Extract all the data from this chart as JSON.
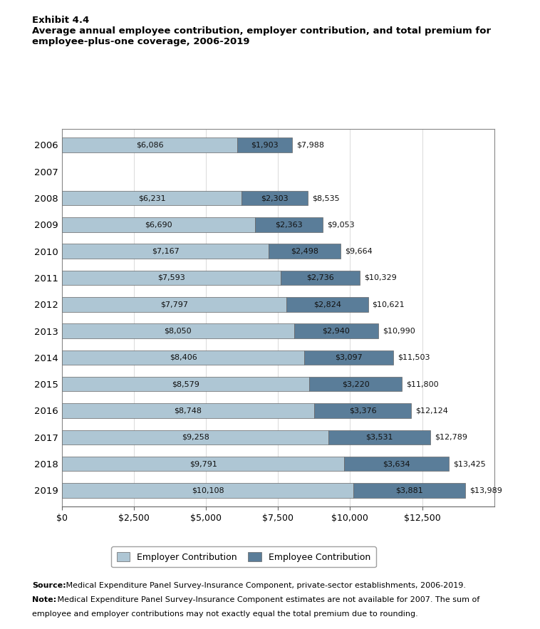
{
  "title_line1": "Exhibit 4.4",
  "title_line2": "Average annual employee contribution, employer contribution, and total premium for\nemployee-plus-one coverage, 2006-2019",
  "years": [
    "2006",
    "2007",
    "2008",
    "2009",
    "2010",
    "2011",
    "2012",
    "2013",
    "2014",
    "2015",
    "2016",
    "2017",
    "2018",
    "2019"
  ],
  "employer_contribution": [
    6086,
    null,
    6231,
    6690,
    7167,
    7593,
    7797,
    8050,
    8406,
    8579,
    8748,
    9258,
    9791,
    10108
  ],
  "employee_contribution": [
    1903,
    null,
    2303,
    2363,
    2498,
    2736,
    2824,
    2940,
    3097,
    3220,
    3376,
    3531,
    3634,
    3881
  ],
  "total_premium": [
    7988,
    null,
    8535,
    9053,
    9664,
    10329,
    10621,
    10990,
    11503,
    11800,
    12124,
    12789,
    13425,
    13989
  ],
  "employer_color": "#aec6d4",
  "employee_color": "#5a7d99",
  "xlim": [
    0,
    15000
  ],
  "xticks": [
    0,
    2500,
    5000,
    7500,
    10000,
    12500
  ],
  "xticklabels": [
    "$0",
    "$2,500",
    "$5,000",
    "$7,500",
    "$10,000",
    "$12,500"
  ],
  "source_bold": "Source:",
  "source_rest": " Medical Expenditure Panel Survey-Insurance Component, private-sector establishments, 2006-2019.",
  "note_bold": "Note:",
  "note_rest": " Medical Expenditure Panel Survey-Insurance Component estimates are not available for 2007. The sum of employee and employer contributions may not exactly equal the total premium due to rounding.",
  "bar_height": 0.55,
  "legend_employer_label": "Employer Contribution",
  "legend_employee_label": "Employee Contribution"
}
